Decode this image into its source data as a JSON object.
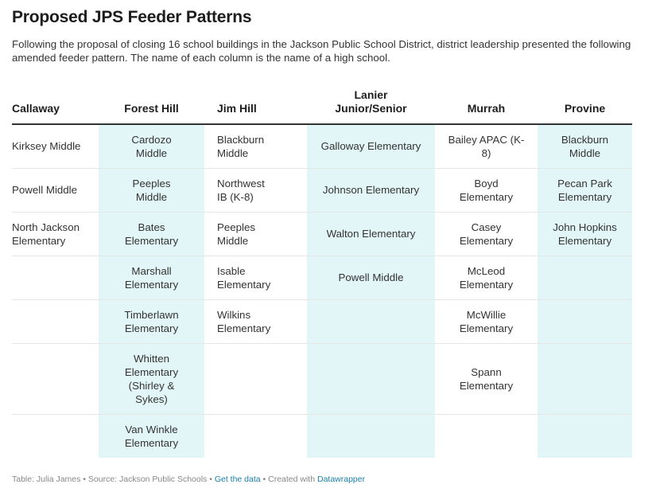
{
  "title": "Proposed JPS Feeder Patterns",
  "description": "Following the proposal of closing 16 school buildings in the Jackson Public School District, district leadership presented the following amended feeder pattern. The name of each column is the name of a high school.",
  "columns": [
    {
      "label": "Callaway",
      "align": "left",
      "highlight": false
    },
    {
      "label": "Forest Hill",
      "align": "center",
      "highlight": true
    },
    {
      "label": "Jim Hill",
      "align": "left",
      "highlight": false
    },
    {
      "label": "Lanier Junior/Senior",
      "align": "center",
      "highlight": true
    },
    {
      "label": "Murrah",
      "align": "center",
      "highlight": false
    },
    {
      "label": "Provine",
      "align": "center",
      "highlight": true
    }
  ],
  "rows": [
    [
      "Kirksey Middle",
      "Cardozo Middle",
      "Blackburn Middle",
      "Galloway Elementary",
      "Bailey APAC (K-8)",
      "Blackburn Middle"
    ],
    [
      "Powell Middle",
      "Peeples Middle",
      "Northwest IB (K-8)",
      "Johnson Elementary",
      "Boyd Elementary",
      "Pecan Park Elementary"
    ],
    [
      "North Jackson Elementary",
      "Bates Elementary",
      "Peeples Middle",
      "Walton Elementary",
      "Casey Elementary",
      "John Hopkins Elementary"
    ],
    [
      "",
      "Marshall Elementary",
      "Isable Elementary",
      "Powell Middle",
      "McLeod Elementary",
      ""
    ],
    [
      "",
      "Timberlawn Elementary",
      "Wilkins Elementary",
      "",
      "McWillie Elementary",
      ""
    ],
    [
      "",
      "Whitten Elementary (Shirley & Sykes)",
      "",
      "",
      "Spann Elementary",
      ""
    ],
    [
      "",
      "Van Winkle Elementary",
      "",
      "",
      "",
      ""
    ]
  ],
  "footer": {
    "credit": "Table: Julia James • Source: Jackson Public Schools • ",
    "get_data": "Get the data",
    "created": " • Created with ",
    "datawrapper": "Datawrapper"
  },
  "colors": {
    "highlight": "#e2f6f8",
    "link": "#1a7fa6"
  }
}
